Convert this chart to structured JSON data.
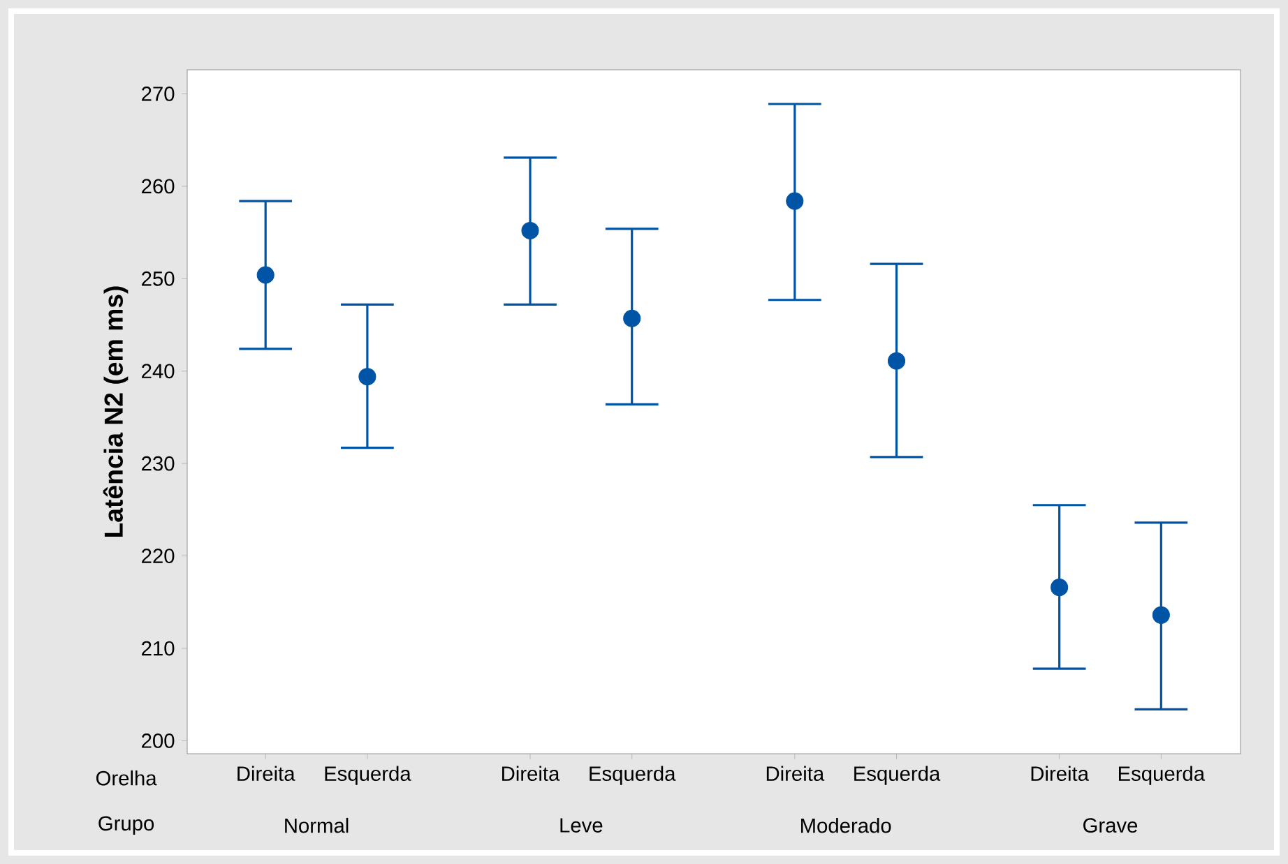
{
  "chart_data": {
    "type": "scatter",
    "ylabel": "Latência N2 (em ms)",
    "categories": [
      "Direita",
      "Esquerda",
      "Direita",
      "Esquerda",
      "Direita",
      "Esquerda",
      "Direita",
      "Esquerda"
    ],
    "values": [
      250.4,
      239.4,
      255.2,
      245.7,
      258.4,
      241.1,
      216.6,
      213.6
    ],
    "errors": [
      [
        242.4,
        258.4
      ],
      [
        231.7,
        247.2
      ],
      [
        247.2,
        263.1
      ],
      [
        236.4,
        255.4
      ],
      [
        247.7,
        268.9
      ],
      [
        230.7,
        251.6
      ],
      [
        207.8,
        225.5
      ],
      [
        203.4,
        223.6
      ]
    ],
    "color": "#0054a6",
    "marker": "circle",
    "ylim": [
      198.6,
      272.6
    ],
    "yticks": [
      200,
      210,
      220,
      230,
      240,
      250,
      260,
      270
    ],
    "annotations": [
      "Orelha",
      "Grupo",
      "Normal",
      "Leve",
      "Moderado",
      "Grave"
    ]
  }
}
